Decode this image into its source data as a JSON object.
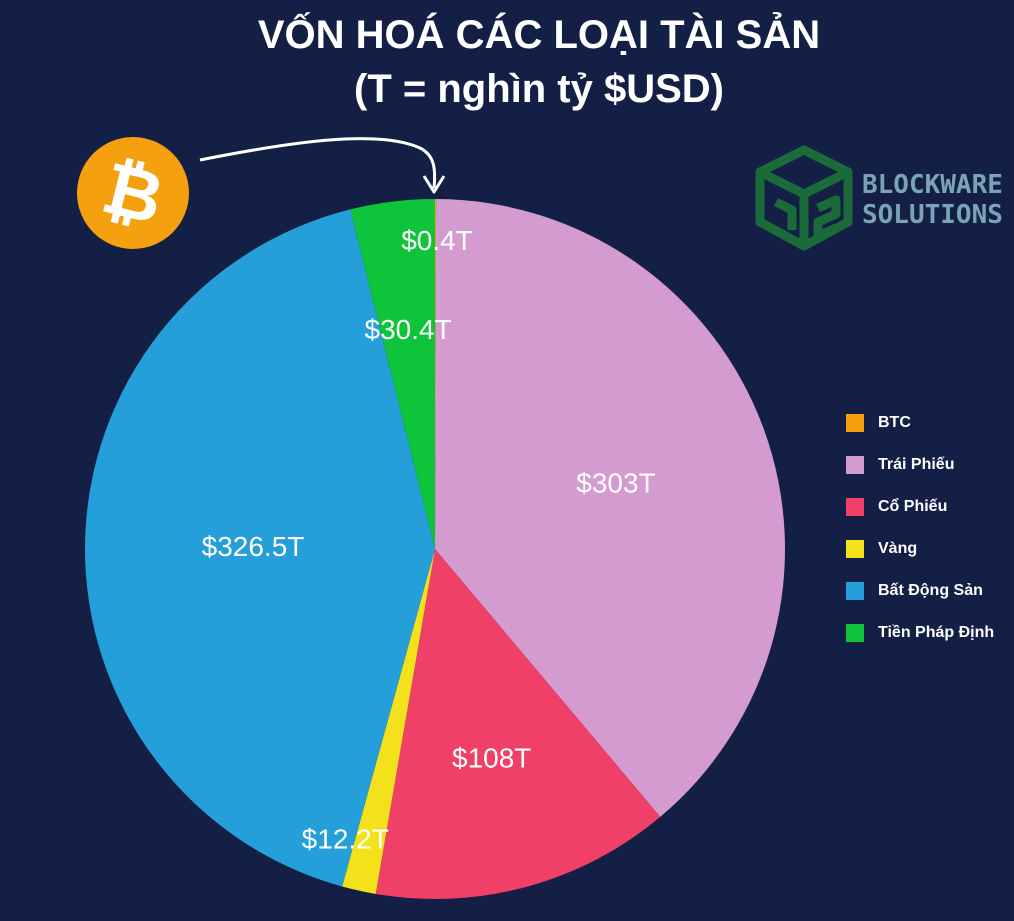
{
  "title_line1": "VỐN HOÁ CÁC LOẠI TÀI SẢN",
  "title_line2": "(T = nghìn tỷ $USD)",
  "logo": {
    "line1": "BLOCKWARE",
    "line2": "SOLUTIONS",
    "mark": "BS"
  },
  "bitcoin_icon_glyph": "₿",
  "chart_data": {
    "type": "pie",
    "title": "VỐN HOÁ CÁC LOẠI TÀI SẢN",
    "subtitle": "(T = nghìn tỷ $USD)",
    "legend_position": "right",
    "unit": "T (nghìn tỷ $USD)",
    "slices": [
      {
        "name": "BTC",
        "value": 0.4,
        "label": "$0.4T",
        "color": "#f5a00f"
      },
      {
        "name": "Trái Phiếu",
        "value": 303,
        "label": "$303T",
        "color": "#d39bcf"
      },
      {
        "name": "Cổ Phiếu",
        "value": 108,
        "label": "$108T",
        "color": "#f04068"
      },
      {
        "name": "Vàng",
        "value": 12.2,
        "label": "$12.2T",
        "color": "#f3e21b"
      },
      {
        "name": "Bất Động Sản",
        "value": 326.5,
        "label": "$326.5T",
        "color": "#259fd9"
      },
      {
        "name": "Tiền Pháp Định",
        "value": 30.4,
        "label": "$30.4T",
        "color": "#0dc43a"
      }
    ]
  },
  "legend": [
    {
      "label": "BTC",
      "color": "#f5a00f"
    },
    {
      "label": "Trái Phiếu",
      "color": "#d39bcf"
    },
    {
      "label": "Cổ Phiếu",
      "color": "#f04068"
    },
    {
      "label": "Vàng",
      "color": "#f3e21b"
    },
    {
      "label": "Bất Động Sản",
      "color": "#259fd9"
    },
    {
      "label": "Tiền Pháp Định",
      "color": "#0dc43a"
    }
  ]
}
